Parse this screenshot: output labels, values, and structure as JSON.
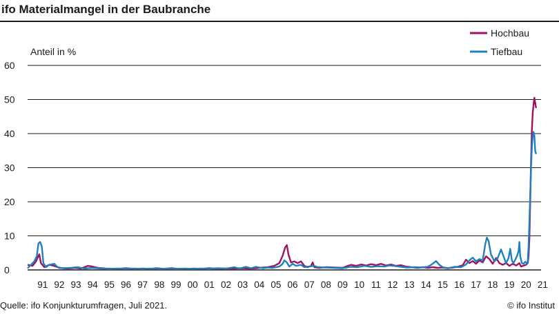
{
  "title": "ifo Materialmangel in der Baubranche",
  "source": "Quelle: ifo Konjunkturumfragen, Juli 2021.",
  "copyright": "© ifo Institut",
  "colors": {
    "hochbau": "#a0125e",
    "tiefbau": "#1f7fbf",
    "grid": "#1a1a1a"
  },
  "chart_data": {
    "type": "line",
    "ylabel": "Anteil in %",
    "ylim": [
      0,
      60
    ],
    "yticks": [
      0,
      10,
      20,
      30,
      40,
      50,
      60
    ],
    "grid": true,
    "legend_position": "top-right",
    "x_tick_labels": [
      "91",
      "92",
      "93",
      "94",
      "95",
      "96",
      "97",
      "98",
      "99",
      "00",
      "01",
      "02",
      "03",
      "04",
      "05",
      "06",
      "07",
      "08",
      "09",
      "10",
      "11",
      "12",
      "13",
      "14",
      "15",
      "16",
      "17",
      "18",
      "19",
      "20",
      "21"
    ],
    "xlim": [
      1990.6,
      2021.4
    ],
    "series": [
      {
        "name": "Hochbau",
        "color": "#a0125e",
        "points": [
          [
            1990.6,
            1.5
          ],
          [
            1990.9,
            1.2
          ],
          [
            1991.1,
            2.5
          ],
          [
            1991.3,
            4.6
          ],
          [
            1991.4,
            2.0
          ],
          [
            1991.6,
            0.8
          ],
          [
            1991.9,
            1.5
          ],
          [
            1992.2,
            1.2
          ],
          [
            1992.5,
            0.6
          ],
          [
            1993.0,
            0.4
          ],
          [
            1993.5,
            0.6
          ],
          [
            1993.8,
            0.4
          ],
          [
            1994.2,
            1.2
          ],
          [
            1994.5,
            1.0
          ],
          [
            1994.8,
            0.6
          ],
          [
            1995.3,
            0.4
          ],
          [
            1996.0,
            0.3
          ],
          [
            1996.5,
            0.5
          ],
          [
            1997.0,
            0.3
          ],
          [
            1997.5,
            0.4
          ],
          [
            1998.0,
            0.3
          ],
          [
            1998.3,
            0.5
          ],
          [
            1998.8,
            0.3
          ],
          [
            1999.2,
            0.5
          ],
          [
            1999.7,
            0.3
          ],
          [
            2000.2,
            0.3
          ],
          [
            2000.6,
            0.4
          ],
          [
            2001.0,
            0.3
          ],
          [
            2001.5,
            0.5
          ],
          [
            2002.0,
            0.3
          ],
          [
            2002.5,
            0.4
          ],
          [
            2003.0,
            0.4
          ],
          [
            2003.5,
            0.5
          ],
          [
            2004.0,
            0.4
          ],
          [
            2004.5,
            0.6
          ],
          [
            2005.0,
            0.8
          ],
          [
            2005.4,
            1.2
          ],
          [
            2005.7,
            2.0
          ],
          [
            2005.9,
            4.2
          ],
          [
            2006.05,
            6.6
          ],
          [
            2006.15,
            7.3
          ],
          [
            2006.25,
            4.5
          ],
          [
            2006.4,
            2.2
          ],
          [
            2006.6,
            2.5
          ],
          [
            2006.8,
            2.0
          ],
          [
            2007.0,
            2.5
          ],
          [
            2007.2,
            1.2
          ],
          [
            2007.4,
            0.8
          ],
          [
            2007.6,
            1.2
          ],
          [
            2007.7,
            2.2
          ],
          [
            2007.8,
            0.8
          ],
          [
            2008.1,
            0.6
          ],
          [
            2008.5,
            0.8
          ],
          [
            2009.0,
            0.7
          ],
          [
            2009.5,
            0.6
          ],
          [
            2009.8,
            1.2
          ],
          [
            2010.0,
            1.5
          ],
          [
            2010.3,
            1.2
          ],
          [
            2010.6,
            1.6
          ],
          [
            2010.9,
            1.3
          ],
          [
            2011.2,
            1.7
          ],
          [
            2011.5,
            1.4
          ],
          [
            2011.8,
            1.8
          ],
          [
            2012.1,
            1.3
          ],
          [
            2012.4,
            1.6
          ],
          [
            2012.7,
            1.2
          ],
          [
            2013.0,
            1.4
          ],
          [
            2013.3,
            1.0
          ],
          [
            2013.6,
            0.8
          ],
          [
            2014.0,
            0.6
          ],
          [
            2014.3,
            0.8
          ],
          [
            2014.6,
            0.6
          ],
          [
            2014.9,
            0.8
          ],
          [
            2015.2,
            0.6
          ],
          [
            2015.5,
            0.7
          ],
          [
            2015.8,
            0.5
          ],
          [
            2016.1,
            0.7
          ],
          [
            2016.4,
            0.9
          ],
          [
            2016.7,
            1.4
          ],
          [
            2016.9,
            3.0
          ],
          [
            2017.1,
            2.0
          ],
          [
            2017.3,
            2.6
          ],
          [
            2017.5,
            1.8
          ],
          [
            2017.7,
            2.8
          ],
          [
            2017.9,
            2.2
          ],
          [
            2018.1,
            4.0
          ],
          [
            2018.3,
            3.2
          ],
          [
            2018.5,
            1.8
          ],
          [
            2018.7,
            3.5
          ],
          [
            2018.9,
            2.0
          ],
          [
            2019.1,
            1.5
          ],
          [
            2019.3,
            2.0
          ],
          [
            2019.5,
            1.2
          ],
          [
            2019.7,
            1.8
          ],
          [
            2019.9,
            1.3
          ],
          [
            2020.1,
            2.0
          ],
          [
            2020.2,
            1.0
          ],
          [
            2020.3,
            1.2
          ],
          [
            2020.5,
            1.5
          ],
          [
            2020.6,
            2.0
          ],
          [
            2020.65,
            4.0
          ],
          [
            2020.7,
            9.0
          ],
          [
            2020.75,
            20.0
          ],
          [
            2020.8,
            32.0
          ],
          [
            2020.85,
            41.0
          ],
          [
            2020.9,
            46.0
          ],
          [
            2020.95,
            48.5
          ],
          [
            2021.0,
            50.5
          ],
          [
            2021.05,
            49.0
          ],
          [
            2021.1,
            47.5
          ]
        ]
      },
      {
        "name": "Tiefbau",
        "color": "#1f7fbf",
        "points": [
          [
            1990.6,
            0.5
          ],
          [
            1990.8,
            1.5
          ],
          [
            1991.0,
            2.5
          ],
          [
            1991.15,
            4.0
          ],
          [
            1991.25,
            7.8
          ],
          [
            1991.35,
            8.2
          ],
          [
            1991.45,
            7.0
          ],
          [
            1991.55,
            2.0
          ],
          [
            1991.7,
            0.8
          ],
          [
            1991.9,
            1.5
          ],
          [
            1992.2,
            1.8
          ],
          [
            1992.4,
            0.8
          ],
          [
            1992.7,
            0.5
          ],
          [
            1993.2,
            0.6
          ],
          [
            1993.6,
            0.8
          ],
          [
            1994.0,
            0.4
          ],
          [
            1994.5,
            0.6
          ],
          [
            1995.0,
            0.4
          ],
          [
            1995.5,
            0.3
          ],
          [
            1996.0,
            0.4
          ],
          [
            1996.5,
            0.3
          ],
          [
            1997.0,
            0.4
          ],
          [
            1997.5,
            0.3
          ],
          [
            1998.0,
            0.4
          ],
          [
            1998.5,
            0.3
          ],
          [
            1999.0,
            0.4
          ],
          [
            1999.5,
            0.3
          ],
          [
            2000.0,
            0.4
          ],
          [
            2000.5,
            0.3
          ],
          [
            2001.0,
            0.4
          ],
          [
            2001.5,
            0.3
          ],
          [
            2002.0,
            0.5
          ],
          [
            2002.5,
            0.4
          ],
          [
            2003.0,
            0.8
          ],
          [
            2003.3,
            0.4
          ],
          [
            2003.7,
            0.9
          ],
          [
            2004.0,
            0.5
          ],
          [
            2004.3,
            0.9
          ],
          [
            2004.7,
            0.5
          ],
          [
            2005.0,
            0.7
          ],
          [
            2005.3,
            0.6
          ],
          [
            2005.7,
            1.0
          ],
          [
            2005.9,
            1.8
          ],
          [
            2006.0,
            2.8
          ],
          [
            2006.15,
            2.2
          ],
          [
            2006.3,
            1.0
          ],
          [
            2006.5,
            1.8
          ],
          [
            2006.7,
            1.2
          ],
          [
            2007.0,
            1.5
          ],
          [
            2007.2,
            0.8
          ],
          [
            2007.5,
            1.0
          ],
          [
            2007.8,
            1.2
          ],
          [
            2008.0,
            0.8
          ],
          [
            2008.5,
            0.7
          ],
          [
            2009.0,
            0.6
          ],
          [
            2009.5,
            0.5
          ],
          [
            2010.0,
            0.9
          ],
          [
            2010.4,
            0.8
          ],
          [
            2010.8,
            1.2
          ],
          [
            2011.2,
            0.9
          ],
          [
            2011.6,
            1.1
          ],
          [
            2012.0,
            1.0
          ],
          [
            2012.3,
            1.3
          ],
          [
            2012.7,
            1.1
          ],
          [
            2013.0,
            0.9
          ],
          [
            2013.4,
            0.7
          ],
          [
            2013.8,
            0.8
          ],
          [
            2014.2,
            0.7
          ],
          [
            2014.6,
            0.9
          ],
          [
            2014.8,
            1.5
          ],
          [
            2015.0,
            2.2
          ],
          [
            2015.1,
            2.6
          ],
          [
            2015.3,
            1.5
          ],
          [
            2015.5,
            0.8
          ],
          [
            2015.8,
            0.5
          ],
          [
            2016.2,
            0.9
          ],
          [
            2016.6,
            0.8
          ],
          [
            2016.9,
            1.6
          ],
          [
            2017.1,
            2.8
          ],
          [
            2017.3,
            3.6
          ],
          [
            2017.5,
            2.5
          ],
          [
            2017.7,
            3.2
          ],
          [
            2017.9,
            2.8
          ],
          [
            2018.05,
            7.5
          ],
          [
            2018.15,
            9.5
          ],
          [
            2018.25,
            8.5
          ],
          [
            2018.4,
            4.5
          ],
          [
            2018.6,
            2.5
          ],
          [
            2018.8,
            3.5
          ],
          [
            2019.0,
            6.0
          ],
          [
            2019.15,
            4.0
          ],
          [
            2019.3,
            2.0
          ],
          [
            2019.45,
            3.5
          ],
          [
            2019.55,
            6.2
          ],
          [
            2019.65,
            2.8
          ],
          [
            2019.75,
            2.0
          ],
          [
            2019.85,
            3.0
          ],
          [
            2019.95,
            4.0
          ],
          [
            2020.05,
            5.5
          ],
          [
            2020.1,
            8.2
          ],
          [
            2020.15,
            4.0
          ],
          [
            2020.25,
            2.0
          ],
          [
            2020.35,
            1.8
          ],
          [
            2020.45,
            2.4
          ],
          [
            2020.55,
            1.8
          ],
          [
            2020.6,
            2.6
          ],
          [
            2020.65,
            7.0
          ],
          [
            2020.7,
            14.0
          ],
          [
            2020.75,
            22.0
          ],
          [
            2020.8,
            30.0
          ],
          [
            2020.85,
            36.0
          ],
          [
            2020.9,
            39.0
          ],
          [
            2020.95,
            40.5
          ],
          [
            2021.0,
            39.5
          ],
          [
            2021.05,
            35.0
          ],
          [
            2021.1,
            34.0
          ]
        ]
      }
    ]
  }
}
